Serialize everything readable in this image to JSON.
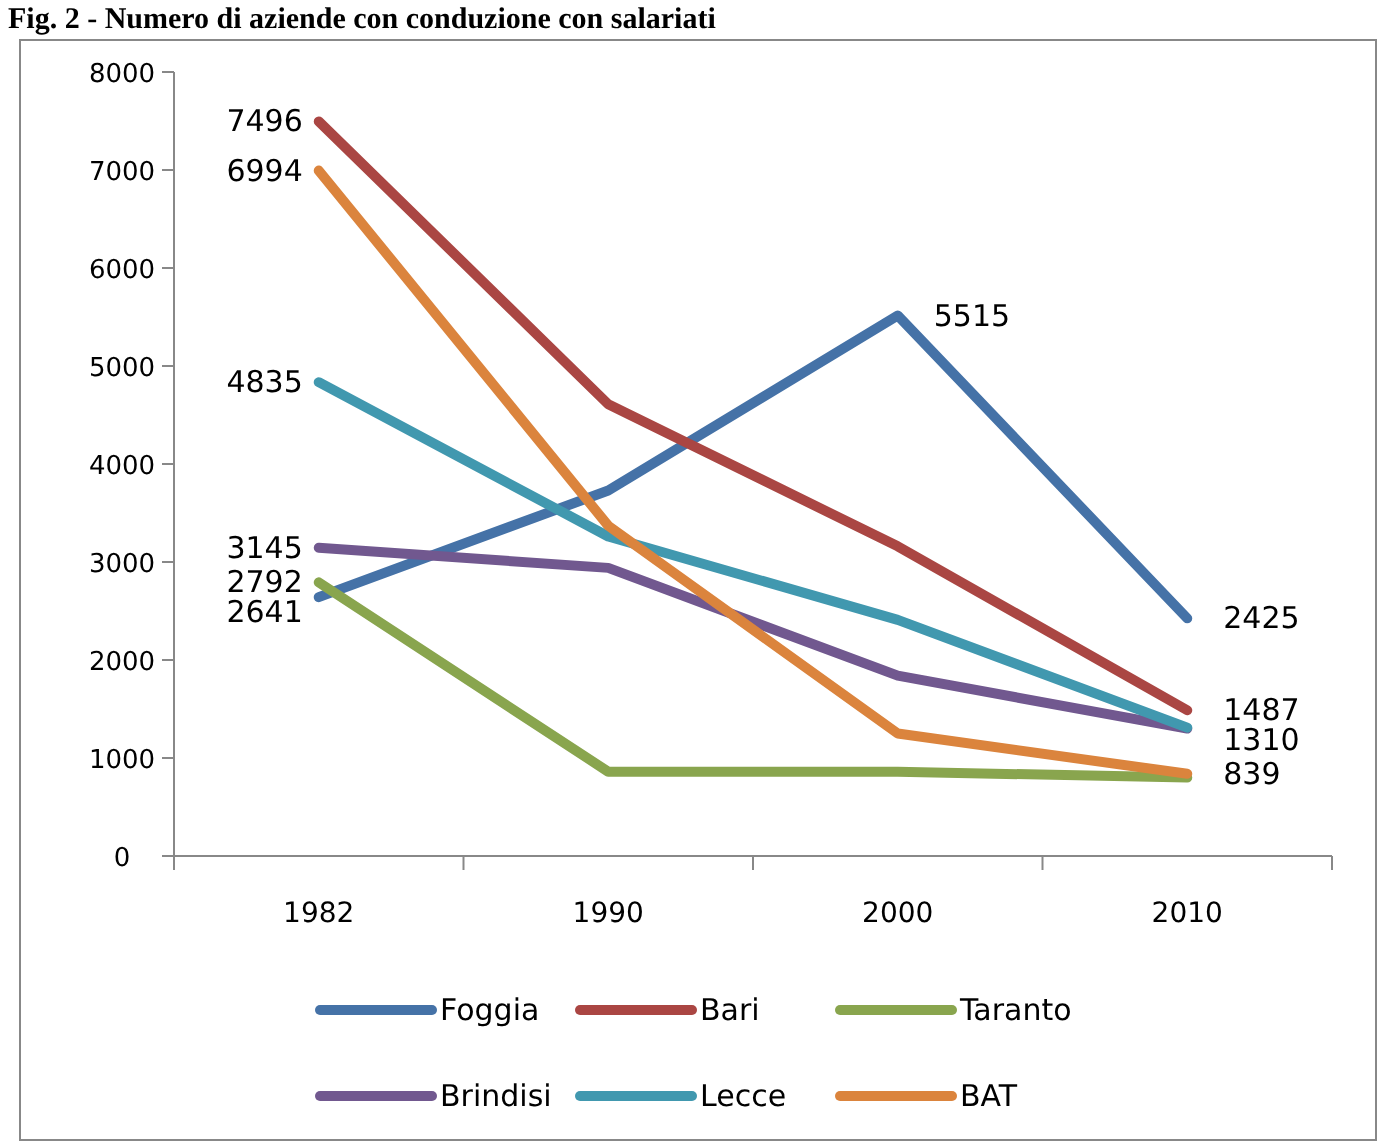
{
  "chart_data": {
    "type": "line",
    "title": "Fig. 2 - Numero di aziende con conduzione con salariati",
    "categories": [
      "1982",
      "1990",
      "2000",
      "2010"
    ],
    "ylim": [
      0,
      8000
    ],
    "yticks": [
      0,
      1000,
      2000,
      3000,
      4000,
      5000,
      6000,
      7000,
      8000
    ],
    "grid": false,
    "legend": "bottom",
    "marker": "none",
    "line_style": "solid",
    "series": [
      {
        "name": "Foggia",
        "color": "#4572a7",
        "values": [
          2641,
          3730,
          5515,
          2425
        ],
        "value_labels": [
          "2641",
          null,
          "5515",
          "2425"
        ]
      },
      {
        "name": "Bari",
        "color": "#aa4643",
        "values": [
          7496,
          4610,
          3160,
          1487
        ],
        "value_labels": [
          "7496",
          null,
          null,
          "1487"
        ]
      },
      {
        "name": "Taranto",
        "color": "#89a54e",
        "values": [
          2792,
          860,
          860,
          800
        ],
        "value_labels": [
          "2792",
          null,
          null,
          null
        ]
      },
      {
        "name": "Brindisi",
        "color": "#71588f",
        "values": [
          3145,
          2940,
          1840,
          1300
        ],
        "value_labels": [
          "3145",
          null,
          null,
          null
        ]
      },
      {
        "name": "Lecce",
        "color": "#4198af",
        "values": [
          4835,
          3260,
          2410,
          1310
        ],
        "value_labels": [
          "4835",
          null,
          null,
          "1310"
        ]
      },
      {
        "name": "BAT",
        "color": "#db843d",
        "values": [
          6994,
          3370,
          1250,
          839
        ],
        "value_labels": [
          "6994",
          null,
          null,
          "839"
        ]
      }
    ]
  }
}
